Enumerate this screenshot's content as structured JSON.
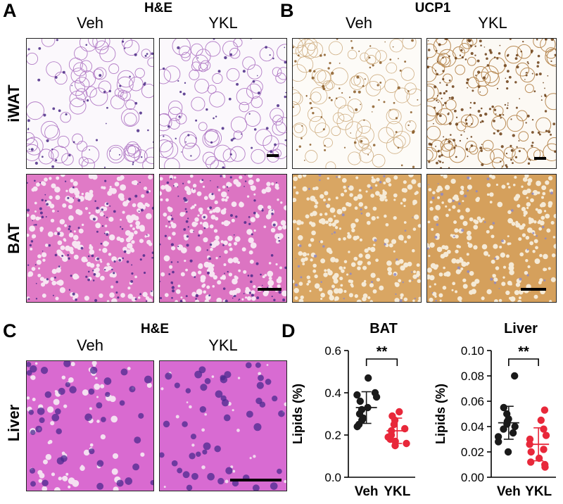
{
  "panels": {
    "A": {
      "letter": "A",
      "stain": "H&E",
      "groups": [
        "Veh",
        "YKL"
      ],
      "rows": [
        "iWAT",
        "BAT"
      ]
    },
    "B": {
      "letter": "B",
      "stain": "UCP1",
      "groups": [
        "Veh",
        "YKL"
      ]
    },
    "C": {
      "letter": "C",
      "stain": "H&E",
      "groups": [
        "Veh",
        "YKL"
      ],
      "rows": [
        "Liver"
      ]
    },
    "D": {
      "letter": "D"
    }
  },
  "chart_data": [
    {
      "type": "scatter",
      "title": "BAT",
      "ylabel": "Lipids (%)",
      "categories": [
        "Veh",
        "YKL"
      ],
      "ylim": [
        0.0,
        0.6
      ],
      "yticks": [
        "0.0",
        "0.2",
        "0.4",
        "0.6"
      ],
      "significance": "**",
      "colors": {
        "Veh": "#1a1a1a",
        "YKL": "#e8283a"
      },
      "series": [
        {
          "category": "Veh",
          "mean": 0.33,
          "sd": 0.075,
          "values": [
            0.47,
            0.4,
            0.39,
            0.38,
            0.36,
            0.33,
            0.32,
            0.3,
            0.28,
            0.27,
            0.25,
            0.24
          ]
        },
        {
          "category": "YKL",
          "mean": 0.22,
          "sd": 0.06,
          "values": [
            0.31,
            0.29,
            0.27,
            0.25,
            0.23,
            0.22,
            0.2,
            0.19,
            0.18,
            0.17,
            0.16,
            0.15
          ]
        }
      ]
    },
    {
      "type": "scatter",
      "title": "Liver",
      "ylabel": "Lipids (%)",
      "categories": [
        "Veh",
        "YKL"
      ],
      "ylim": [
        0.0,
        0.1
      ],
      "yticks": [
        "0.00",
        "0.02",
        "0.04",
        "0.06",
        "0.08",
        "0.10"
      ],
      "significance": "**",
      "colors": {
        "Veh": "#1a1a1a",
        "YKL": "#e8283a"
      },
      "series": [
        {
          "category": "Veh",
          "mean": 0.043,
          "sd": 0.013,
          "values": [
            0.08,
            0.055,
            0.05,
            0.046,
            0.044,
            0.042,
            0.04,
            0.038,
            0.035,
            0.032,
            0.028,
            0.02
          ]
        },
        {
          "category": "YKL",
          "mean": 0.026,
          "sd": 0.013,
          "values": [
            0.053,
            0.045,
            0.038,
            0.033,
            0.03,
            0.026,
            0.022,
            0.02,
            0.015,
            0.012,
            0.01,
            0.008
          ]
        }
      ]
    }
  ]
}
